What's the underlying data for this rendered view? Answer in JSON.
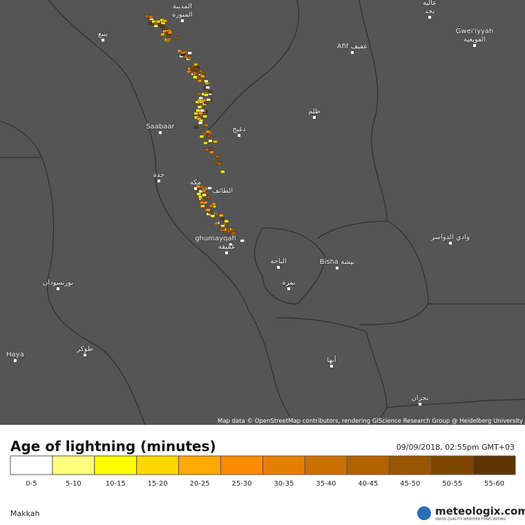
{
  "map": {
    "labels": [
      "المدينة",
      "المنورة",
      "ينبع",
      "Afif عفيف",
      "Gwei'iyyah",
      "القويعية",
      "عالية",
      "نجد",
      "Saabaar",
      "ظلم",
      "دغبج",
      "جدة",
      "مكة",
      "الطائف",
      "ghumayqah",
      "غميقة",
      "وادي الدواسر",
      "Bisha بيشة",
      "الباحة",
      "نمرة",
      "بورتسودان",
      "Haya",
      "طوكر",
      "أبها",
      "نجران"
    ],
    "attribution": "Map data © OpenStreetMap contributors, rendering GIScience Research Group @ Heidelberg University"
  },
  "legend": {
    "title": "Age of lightning (minutes)",
    "timestamp": "09/09/2018, 02:55pm GMT+03",
    "classes": [
      {
        "label": "0-5",
        "color": "#ffffff"
      },
      {
        "label": "5-10",
        "color": "#ffff80"
      },
      {
        "label": "10-15",
        "color": "#ffff00"
      },
      {
        "label": "15-20",
        "color": "#ffd700"
      },
      {
        "label": "20-25",
        "color": "#ffaa00"
      },
      {
        "label": "25-30",
        "color": "#ff8c00"
      },
      {
        "label": "30-35",
        "color": "#e67e00"
      },
      {
        "label": "35-40",
        "color": "#cc7000"
      },
      {
        "label": "40-45",
        "color": "#b36200"
      },
      {
        "label": "45-50",
        "color": "#995400"
      },
      {
        "label": "50-55",
        "color": "#7f4600"
      },
      {
        "label": "55-60",
        "color": "#5e3400"
      }
    ]
  },
  "footer": {
    "location": "Makkah",
    "brand": "meteologix.com",
    "tagline": "SWISS QUALITY WEATHER FORECASTING"
  }
}
